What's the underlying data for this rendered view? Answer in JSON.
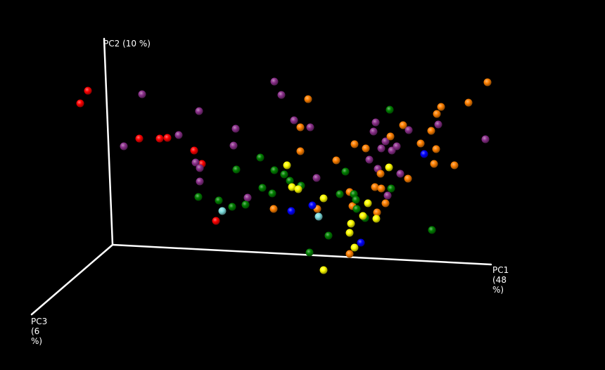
{
  "chart_data": {
    "type": "scatter",
    "projection": "3d-perspective",
    "title": "",
    "background": "#000000",
    "axis_color": "#ffffff",
    "axes": {
      "pc1": {
        "label_lines": [
          "PC1",
          "(48",
          "%)"
        ]
      },
      "pc2": {
        "label_lines": [
          "PC2 (10 %)"
        ]
      },
      "pc3": {
        "label_lines": [
          "PC3",
          "(6",
          "%)"
        ]
      }
    },
    "groups": [
      {
        "color": "#ff0000",
        "points": [
          [
            114,
            147
          ],
          [
            125,
            129
          ],
          [
            198,
            197
          ],
          [
            227,
            197
          ],
          [
            238,
            196
          ],
          [
            276,
            214
          ],
          [
            287,
            233
          ],
          [
            307,
            314
          ]
        ]
      },
      {
        "color": "#8b2f8b",
        "points": [
          [
            202,
            134
          ],
          [
            176,
            208
          ],
          [
            254,
            192
          ],
          [
            283,
            158
          ],
          [
            278,
            231
          ],
          [
            284,
            239
          ],
          [
            284,
            258
          ],
          [
            335,
            183
          ],
          [
            332,
            207
          ],
          [
            352,
            281
          ],
          [
            390,
            116
          ],
          [
            400,
            135
          ],
          [
            418,
            171
          ],
          [
            441,
            181
          ],
          [
            450,
            253
          ],
          [
            525,
            227
          ],
          [
            534,
            174
          ],
          [
            531,
            187
          ],
          [
            542,
            211
          ],
          [
            548,
            201
          ],
          [
            557,
            214
          ],
          [
            564,
            208
          ],
          [
            569,
            247
          ],
          [
            581,
            185
          ],
          [
            623,
            177
          ],
          [
            690,
            198
          ],
          [
            537,
            240
          ],
          [
            551,
            278
          ]
        ]
      },
      {
        "color": "#ff8000",
        "points": [
          [
            389,
            297
          ],
          [
            438,
            141
          ],
          [
            427,
            181
          ],
          [
            427,
            215
          ],
          [
            478,
            228
          ],
          [
            451,
            297
          ],
          [
            497,
            273
          ],
          [
            504,
            205
          ],
          [
            501,
            293
          ],
          [
            520,
            211
          ],
          [
            541,
            247
          ],
          [
            555,
            194
          ],
          [
            573,
            178
          ],
          [
            598,
            204
          ],
          [
            613,
            186
          ],
          [
            621,
            162
          ],
          [
            627,
            152
          ],
          [
            620,
            212
          ],
          [
            617,
            233
          ],
          [
            580,
            254
          ],
          [
            533,
            266
          ],
          [
            542,
            268
          ],
          [
            548,
            289
          ],
          [
            536,
            302
          ],
          [
            497,
            361
          ],
          [
            646,
            235
          ],
          [
            666,
            146
          ],
          [
            693,
            117
          ]
        ]
      },
      {
        "color": "#008000",
        "points": [
          [
            282,
            280
          ],
          [
            311,
            285
          ],
          [
            330,
            294
          ],
          [
            349,
            291
          ],
          [
            336,
            241
          ],
          [
            370,
            224
          ],
          [
            373,
            267
          ],
          [
            387,
            275
          ],
          [
            390,
            242
          ],
          [
            404,
            248
          ],
          [
            412,
            257
          ],
          [
            428,
            264
          ],
          [
            440,
            359
          ],
          [
            467,
            335
          ],
          [
            483,
            276
          ],
          [
            491,
            244
          ],
          [
            503,
            276
          ],
          [
            506,
            284
          ],
          [
            507,
            297
          ],
          [
            519,
            310
          ],
          [
            556,
            268
          ],
          [
            554,
            156
          ],
          [
            614,
            327
          ]
        ]
      },
      {
        "color": "#ffff00",
        "points": [
          [
            408,
            235
          ],
          [
            415,
            266
          ],
          [
            424,
            269
          ],
          [
            460,
            282
          ],
          [
            460,
            384
          ],
          [
            499,
            318
          ],
          [
            497,
            331
          ],
          [
            504,
            352
          ],
          [
            516,
            307
          ],
          [
            523,
            289
          ],
          [
            535,
            311
          ],
          [
            553,
            238
          ]
        ]
      },
      {
        "color": "#0000ff",
        "points": [
          [
            414,
            300
          ],
          [
            444,
            292
          ],
          [
            513,
            345
          ],
          [
            603,
            219
          ]
        ]
      },
      {
        "color": "#7fdfdf",
        "points": [
          [
            316,
            300
          ],
          [
            453,
            308
          ]
        ]
      }
    ]
  }
}
